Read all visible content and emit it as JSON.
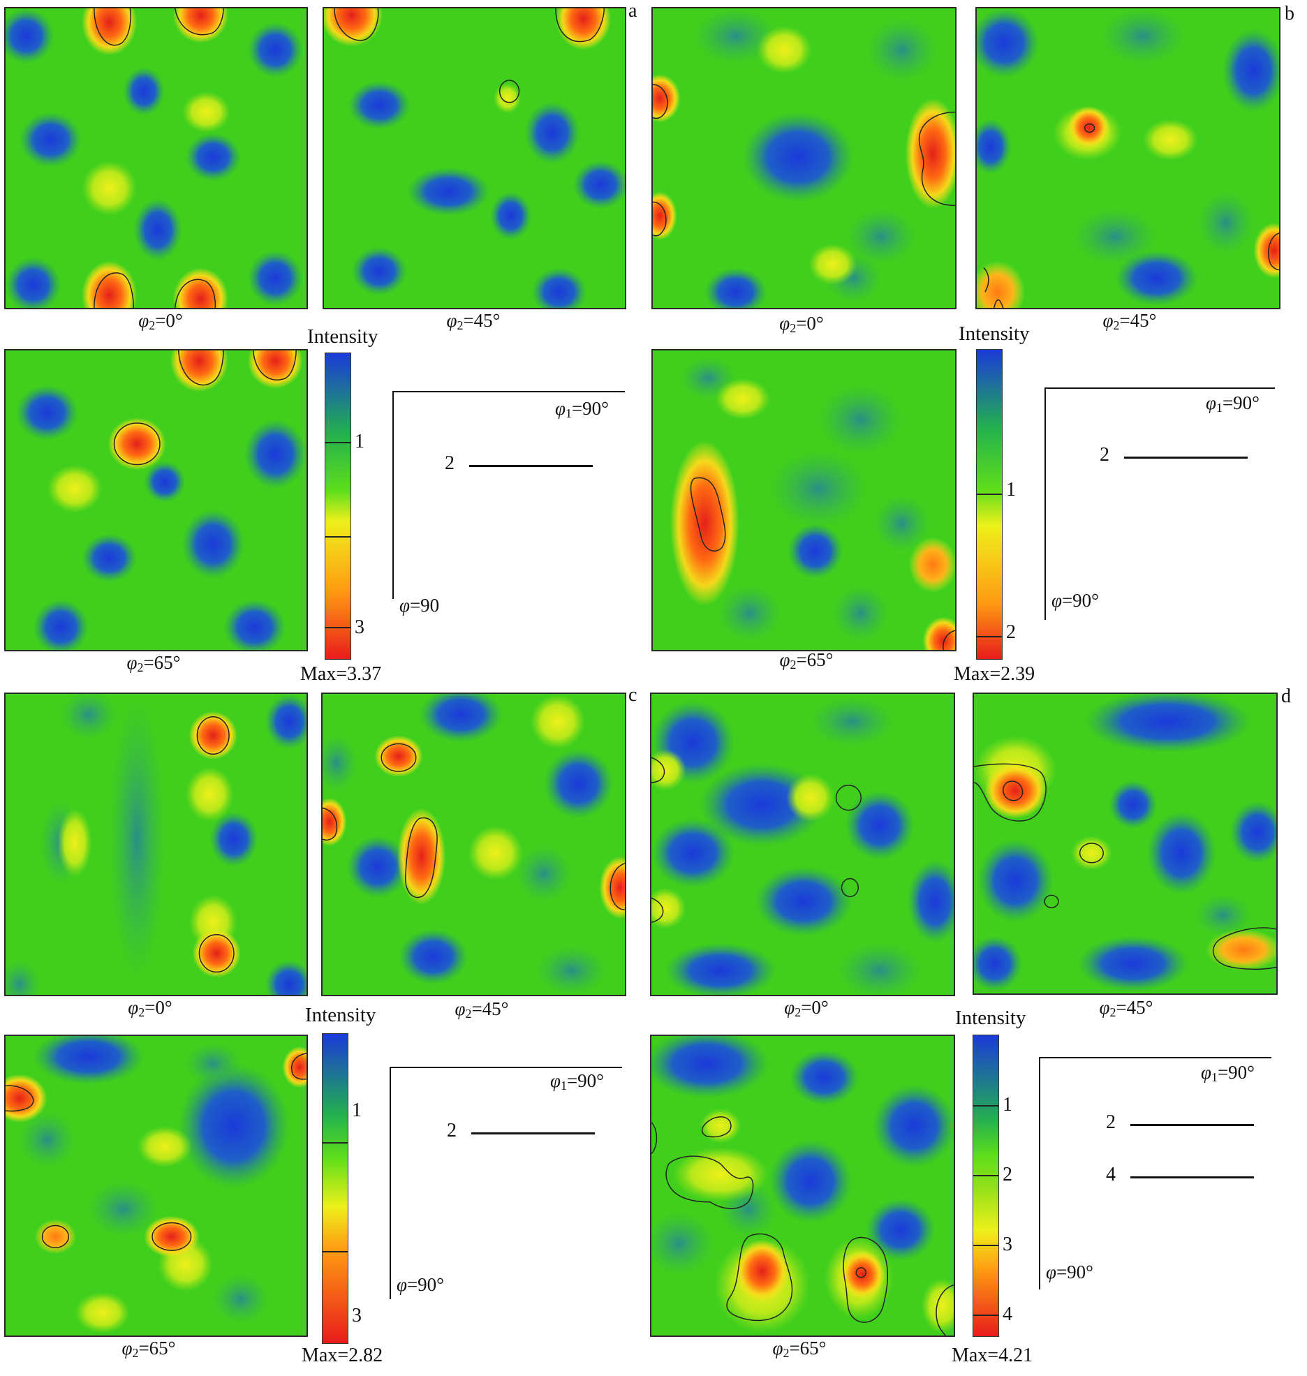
{
  "panels": {
    "a": {
      "letter": "a",
      "captions": [
        "φ2=0°",
        "φ2=45°",
        "φ2=65°"
      ],
      "intensity_title": "Intensity",
      "colorbar_ticks": [
        "1",
        "3"
      ],
      "max_label": "Max=3.37",
      "axis_phi1": "φ1=90°",
      "axis_phi": "φ=90",
      "legend": [
        "2"
      ]
    },
    "b": {
      "letter": "b",
      "captions": [
        "φ2=0°",
        "φ2=45°",
        "φ2=65°"
      ],
      "intensity_title": "Intensity",
      "colorbar_ticks": [
        "1",
        "2"
      ],
      "max_label": "Max=2.39",
      "axis_phi1": "φ1=90°",
      "axis_phi": "φ=90°",
      "legend": [
        "2"
      ]
    },
    "c": {
      "letter": "c",
      "captions": [
        "φ2=0°",
        "φ2=45°",
        "φ2=65°"
      ],
      "intensity_title": "Intensity",
      "colorbar_ticks": [
        "1",
        "3"
      ],
      "max_label": "Max=2.82",
      "axis_phi1": "φ1=90°",
      "axis_phi": "φ=90°",
      "legend": [
        "2"
      ]
    },
    "d": {
      "letter": "d",
      "captions": [
        "φ2=0°",
        "φ2=45°",
        "φ2=65°"
      ],
      "intensity_title": "Intensity",
      "colorbar_ticks": [
        "1",
        "2",
        "3",
        "4"
      ],
      "max_label": "Max=4.21",
      "axis_phi1": "φ1=90°",
      "axis_phi": "φ=90°",
      "legend": [
        "2",
        "4"
      ]
    }
  },
  "colors": {
    "low": "#1f3fd8",
    "mid": "#3fcf1c",
    "high_yellow": "#f2f21a",
    "high_orange": "#ff8c10",
    "peak": "#e81c1c"
  }
}
